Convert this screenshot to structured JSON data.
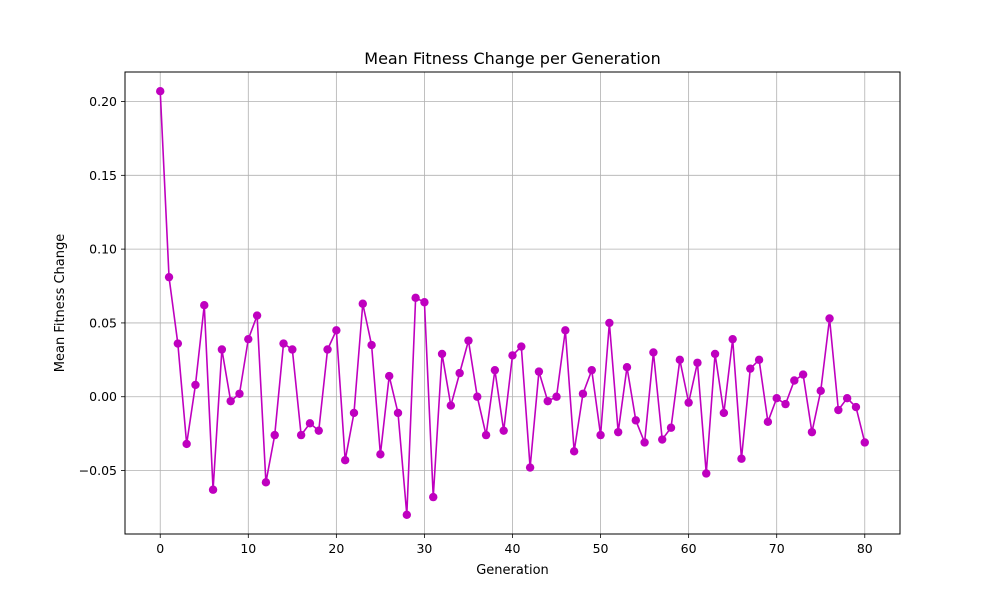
{
  "chart_data": {
    "type": "line",
    "title": "Mean Fitness Change per Generation",
    "xlabel": "Generation",
    "ylabel": "Mean Fitness Change",
    "xlim": [
      -4,
      84
    ],
    "ylim": [
      -0.093,
      0.22
    ],
    "xticks": [
      0,
      10,
      20,
      30,
      40,
      50,
      60,
      70,
      80
    ],
    "yticks": [
      -0.05,
      0.0,
      0.05,
      0.1,
      0.15,
      0.2
    ],
    "ytick_labels": [
      "−0.05",
      "0.00",
      "0.05",
      "0.10",
      "0.15",
      "0.20"
    ],
    "grid": true,
    "marker": "circle",
    "color": "#BF00BF",
    "x": [
      0,
      1,
      2,
      3,
      4,
      5,
      6,
      7,
      8,
      9,
      10,
      11,
      12,
      13,
      14,
      15,
      16,
      17,
      18,
      19,
      20,
      21,
      22,
      23,
      24,
      25,
      26,
      27,
      28,
      29,
      30,
      31,
      32,
      33,
      34,
      35,
      36,
      37,
      38,
      39,
      40,
      41,
      42,
      43,
      44,
      45,
      46,
      47,
      48,
      49,
      50,
      51,
      52,
      53,
      54,
      55,
      56,
      57,
      58,
      59,
      60,
      61,
      62,
      63,
      64,
      65,
      66,
      67,
      68,
      69,
      70,
      71,
      72,
      73,
      74,
      75,
      76,
      77,
      78,
      79,
      80
    ],
    "y": [
      0.207,
      0.081,
      0.036,
      -0.032,
      0.008,
      0.062,
      -0.063,
      0.032,
      -0.003,
      0.002,
      0.039,
      0.055,
      -0.058,
      -0.026,
      0.036,
      0.032,
      -0.026,
      -0.018,
      -0.023,
      0.032,
      0.045,
      -0.043,
      -0.011,
      0.063,
      0.035,
      -0.039,
      0.014,
      -0.011,
      -0.08,
      0.067,
      0.064,
      -0.068,
      0.029,
      -0.006,
      0.016,
      0.038,
      0.0,
      -0.026,
      0.018,
      -0.023,
      0.028,
      0.034,
      -0.048,
      0.017,
      -0.003,
      0.0,
      0.045,
      -0.037,
      0.002,
      0.018,
      -0.026,
      0.05,
      -0.024,
      0.02,
      -0.016,
      -0.031,
      0.03,
      -0.029,
      -0.021,
      0.025,
      -0.004,
      0.023,
      -0.052,
      0.029,
      -0.011,
      0.039,
      -0.042,
      0.019,
      0.025,
      -0.017,
      -0.001,
      -0.005,
      0.011,
      0.015,
      -0.024,
      0.004,
      0.053,
      -0.009,
      -0.001,
      -0.007,
      -0.031
    ]
  }
}
